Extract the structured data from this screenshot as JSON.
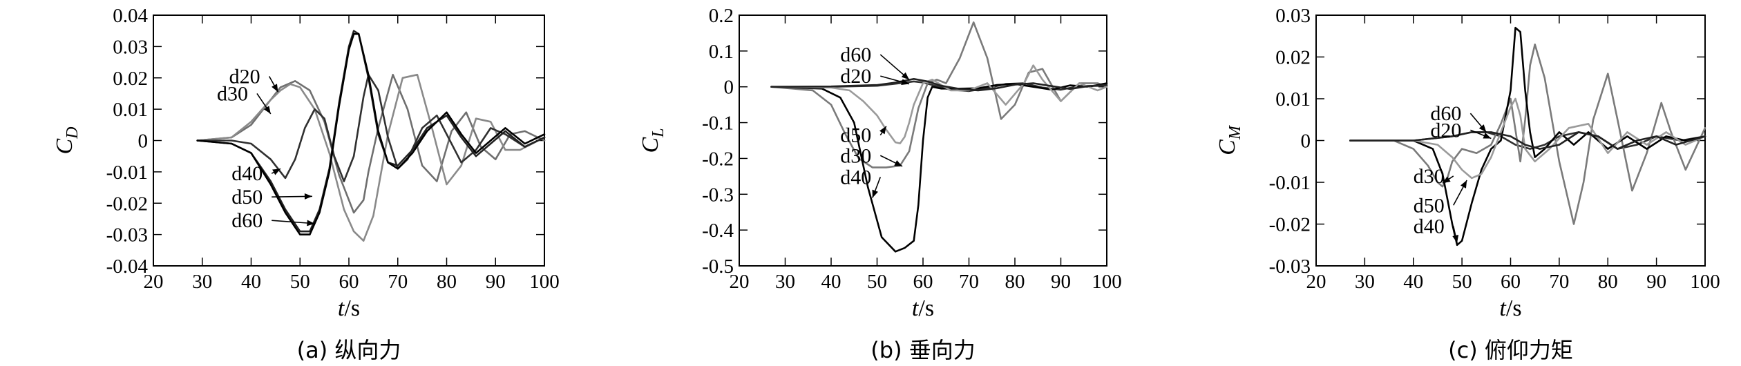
{
  "chart_data": [
    {
      "type": "line",
      "caption": "(a) 纵向力",
      "xlabel": "t/s",
      "ylabel": "C_D",
      "xlim": [
        20,
        100
      ],
      "ylim": [
        -0.04,
        0.04
      ],
      "x_ticks": [
        20,
        30,
        40,
        50,
        60,
        70,
        80,
        90,
        100
      ],
      "y_ticks": [
        -0.04,
        -0.03,
        -0.02,
        -0.01,
        0,
        0.01,
        0.02,
        0.03,
        0.04
      ],
      "x_tick_labels": [
        "20",
        "30",
        "40",
        "50",
        "60",
        "70",
        "80",
        "90",
        "100"
      ],
      "y_tick_labels": [
        "-0.04",
        "-0.03",
        "-0.02",
        "-0.01",
        "0",
        "0.01",
        "0.02",
        "0.03",
        "0.04"
      ],
      "grid": false,
      "series": [
        {
          "name": "d20",
          "color": "#6f6f6f",
          "x": [
            29,
            36,
            40,
            44,
            46,
            49,
            52,
            55,
            58,
            61,
            63,
            64,
            66,
            69,
            72,
            75,
            78,
            81,
            84,
            87,
            90,
            93,
            96,
            100
          ],
          "y": [
            0,
            0.001,
            0.005,
            0.013,
            0.017,
            0.019,
            0.016,
            0.006,
            -0.011,
            -0.023,
            -0.019,
            -0.01,
            0.004,
            0.021,
            0.01,
            -0.008,
            -0.013,
            0.003,
            0.009,
            -0.002,
            -0.006,
            0.002,
            0.003,
            0
          ]
        },
        {
          "name": "d30",
          "color": "#8a8a8a",
          "x": [
            29,
            36,
            40,
            44,
            46,
            48,
            50,
            53,
            56,
            59,
            61,
            63,
            65,
            68,
            71,
            74,
            77,
            80,
            83,
            86,
            89,
            92,
            95,
            100
          ],
          "y": [
            0,
            0.001,
            0.006,
            0.013,
            0.016,
            0.018,
            0.017,
            0.01,
            -0.004,
            -0.022,
            -0.029,
            -0.032,
            -0.024,
            0.002,
            0.02,
            0.021,
            0.004,
            -0.014,
            -0.008,
            0.007,
            0.006,
            -0.003,
            -0.003,
            0.001
          ]
        },
        {
          "name": "d40",
          "color": "#303030",
          "x": [
            29,
            36,
            40,
            44,
            47,
            49,
            51,
            53,
            55,
            57,
            59,
            61,
            63,
            64,
            66,
            68,
            70,
            72,
            75,
            78,
            80,
            83,
            86,
            89,
            92,
            96,
            100
          ],
          "y": [
            0,
            0,
            -0.001,
            -0.006,
            -0.012,
            -0.006,
            0.004,
            0.01,
            0.007,
            -0.005,
            -0.013,
            -0.005,
            0.014,
            0.021,
            0.016,
            0.001,
            -0.009,
            -0.006,
            0.004,
            0.008,
            0.002,
            -0.007,
            -0.003,
            0.004,
            0.002,
            -0.002,
            0.001
          ]
        },
        {
          "name": "d50",
          "color": "#222222",
          "x": [
            29,
            36,
            40,
            44,
            47,
            50,
            52,
            54,
            56,
            58,
            60,
            61,
            62,
            64,
            66,
            68,
            70,
            73,
            76,
            80,
            83,
            86,
            89,
            92,
            96,
            100
          ],
          "y": [
            0,
            -0.001,
            -0.004,
            -0.013,
            -0.022,
            -0.029,
            -0.029,
            -0.022,
            -0.009,
            0.012,
            0.03,
            0.035,
            0.034,
            0.02,
            0.002,
            -0.007,
            -0.008,
            -0.003,
            0.004,
            0.008,
            0.001,
            -0.005,
            -0.001,
            0.003,
            -0.002,
            0.001
          ]
        },
        {
          "name": "d60",
          "color": "#000000",
          "x": [
            29,
            36,
            40,
            44,
            47,
            50,
            52,
            54,
            56,
            58,
            60,
            61,
            62,
            64,
            66,
            68,
            70,
            73,
            76,
            80,
            83,
            86,
            89,
            92,
            96,
            100
          ],
          "y": [
            0,
            -0.001,
            -0.004,
            -0.014,
            -0.023,
            -0.03,
            -0.03,
            -0.023,
            -0.01,
            0.011,
            0.029,
            0.034,
            0.034,
            0.021,
            0.003,
            -0.007,
            -0.009,
            -0.004,
            0.003,
            0.009,
            0.002,
            -0.004,
            0,
            0.004,
            -0.001,
            0.002
          ]
        }
      ],
      "annotations": [
        {
          "text": "d20",
          "x_text": 35.5,
          "y_text": 0.0205,
          "x_point": 45.5,
          "y_point": 0.0155
        },
        {
          "text": "d30",
          "x_text": 33,
          "y_text": 0.015,
          "x_point": 44,
          "y_point": 0.0085
        },
        {
          "text": "d40",
          "x_text": 36,
          "y_text": -0.0105,
          "x_point": 46,
          "y_point": -0.009
        },
        {
          "text": "d50",
          "x_text": 36,
          "y_text": -0.018,
          "x_point": 52.5,
          "y_point": -0.0178
        },
        {
          "text": "d60",
          "x_text": 36,
          "y_text": -0.0255,
          "x_point": 53,
          "y_point": -0.0265
        }
      ]
    },
    {
      "type": "line",
      "caption": "(b) 垂向力",
      "xlabel": "t/s",
      "ylabel": "C_L",
      "xlim": [
        20,
        100
      ],
      "ylim": [
        -0.5,
        0.2
      ],
      "x_ticks": [
        20,
        30,
        40,
        50,
        60,
        70,
        80,
        90,
        100
      ],
      "y_ticks": [
        -0.5,
        -0.4,
        -0.3,
        -0.2,
        -0.1,
        0,
        0.1,
        0.2
      ],
      "x_tick_labels": [
        "20",
        "30",
        "40",
        "50",
        "60",
        "70",
        "80",
        "90",
        "100"
      ],
      "y_tick_labels": [
        "-0.5",
        "-0.4",
        "-0.3",
        "-0.2",
        "-0.1",
        "0",
        "0.1",
        "0.2"
      ],
      "grid": false,
      "series": [
        {
          "name": "d20",
          "color": "#303030",
          "x": [
            27,
            40,
            50,
            55,
            58,
            60,
            63,
            66,
            70,
            74,
            78,
            82,
            86,
            90,
            94,
            100
          ],
          "y": [
            0,
            0,
            0.003,
            0.01,
            0.015,
            0.012,
            0.002,
            -0.008,
            -0.012,
            -0.004,
            0.008,
            0.01,
            -0.002,
            -0.008,
            0.002,
            0.003
          ]
        },
        {
          "name": "d30",
          "color": "#7a7a7a",
          "x": [
            27,
            36,
            40,
            43,
            46,
            49,
            52,
            55,
            57,
            59,
            61,
            63,
            65,
            68,
            71,
            74,
            77,
            80,
            83,
            86,
            90,
            94,
            98,
            100
          ],
          "y": [
            0,
            -0.01,
            -0.05,
            -0.13,
            -0.2,
            -0.225,
            -0.225,
            -0.22,
            -0.18,
            -0.06,
            0.01,
            0.02,
            0.01,
            0.08,
            0.18,
            0.08,
            -0.09,
            -0.05,
            0.04,
            0.05,
            -0.04,
            0.01,
            0.01,
            0
          ]
        },
        {
          "name": "d40",
          "color": "#000000",
          "x": [
            27,
            38,
            42,
            45,
            48,
            51,
            54,
            56,
            58,
            59,
            60,
            61,
            62,
            64,
            68,
            72,
            76,
            80,
            84,
            88,
            92,
            96,
            100
          ],
          "y": [
            0,
            -0.005,
            -0.03,
            -0.1,
            -0.28,
            -0.42,
            -0.46,
            -0.45,
            -0.43,
            -0.33,
            -0.15,
            -0.03,
            0,
            -0.005,
            -0.005,
            -0.004,
            0.005,
            0.008,
            0,
            -0.008,
            0.004,
            0,
            0.01
          ]
        },
        {
          "name": "d50",
          "color": "#9a9a9a",
          "x": [
            27,
            40,
            44,
            47,
            50,
            52,
            54,
            55,
            56,
            57,
            58,
            60,
            62,
            64,
            66,
            70,
            74,
            78,
            82,
            84,
            86,
            90,
            94,
            98,
            100
          ],
          "y": [
            0,
            -0.002,
            -0.01,
            -0.04,
            -0.08,
            -0.12,
            -0.155,
            -0.158,
            -0.14,
            -0.1,
            -0.05,
            0.01,
            0.02,
            0.005,
            -0.01,
            -0.01,
            0.01,
            -0.05,
            0.01,
            0.06,
            0.02,
            -0.04,
            0.01,
            -0.01,
            0
          ]
        },
        {
          "name": "d60",
          "color": "#222222",
          "x": [
            27,
            40,
            50,
            54,
            58,
            61,
            64,
            68,
            72,
            76,
            80,
            84,
            88,
            92,
            96,
            100
          ],
          "y": [
            0,
            0.001,
            0.005,
            0.012,
            0.022,
            0.015,
            0.003,
            -0.006,
            -0.01,
            -0.004,
            0.006,
            0.01,
            0.002,
            -0.006,
            0.002,
            0.005
          ]
        }
      ],
      "annotations": [
        {
          "text": "d60",
          "x_text": 42,
          "y_text": 0.09,
          "x_point": 57,
          "y_point": 0.02
        },
        {
          "text": "d20",
          "x_text": 42,
          "y_text": 0.03,
          "x_point": 57,
          "y_point": 0.008
        },
        {
          "text": "d50",
          "x_text": 42,
          "y_text": -0.135,
          "x_point": 52,
          "y_point": -0.11
        },
        {
          "text": "d30",
          "x_text": 42,
          "y_text": -0.192,
          "x_point": 55.5,
          "y_point": -0.222
        },
        {
          "text": "d40",
          "x_text": 42,
          "y_text": -0.252,
          "x_point": 49,
          "y_point": -0.31
        }
      ]
    },
    {
      "type": "line",
      "caption": "(c) 俯仰力矩",
      "xlabel": "t/s",
      "ylabel": "C_M",
      "xlim": [
        20,
        100
      ],
      "ylim": [
        -0.03,
        0.03
      ],
      "x_ticks": [
        20,
        30,
        40,
        50,
        60,
        70,
        80,
        90,
        100
      ],
      "y_ticks": [
        -0.03,
        -0.02,
        -0.01,
        0,
        0.01,
        0.02,
        0.03
      ],
      "x_tick_labels": [
        "20",
        "30",
        "40",
        "50",
        "60",
        "70",
        "80",
        "90",
        "100"
      ],
      "y_tick_labels": [
        "-0.03",
        "-0.02",
        "-0.01",
        "0",
        "0.01",
        "0.02",
        "0.03"
      ],
      "grid": false,
      "series": [
        {
          "name": "d20",
          "color": "#303030",
          "x": [
            27,
            40,
            48,
            52,
            55,
            58,
            61,
            64,
            67,
            70,
            74,
            78,
            82,
            86,
            90,
            95,
            100
          ],
          "y": [
            0,
            0,
            0.001,
            0.002,
            0.002,
            0.001,
            -0.001,
            -0.002,
            -0.001,
            0.001,
            0.002,
            0.001,
            -0.002,
            -0.001,
            0.001,
            0,
            0.001
          ]
        },
        {
          "name": "d30",
          "color": "#7a7a7a",
          "x": [
            27,
            36,
            40,
            43,
            45,
            46,
            47,
            48,
            50,
            53,
            56,
            58,
            60,
            62,
            63,
            64,
            65,
            67,
            70,
            73,
            75,
            77,
            80,
            82,
            85,
            88,
            91,
            93,
            96,
            100
          ],
          "y": [
            0,
            0,
            -0.002,
            -0.006,
            -0.01,
            -0.011,
            -0.009,
            -0.005,
            -0.002,
            -0.003,
            -0.001,
            0.004,
            0.01,
            -0.005,
            0.005,
            0.018,
            0.023,
            0.015,
            -0.005,
            -0.02,
            -0.01,
            0.005,
            0.016,
            0.005,
            -0.012,
            -0.003,
            0.009,
            0.002,
            -0.007,
            0.003
          ]
        },
        {
          "name": "d40",
          "color": "#000000",
          "x": [
            27,
            40,
            44,
            46,
            48,
            49,
            50,
            52,
            54,
            56,
            58,
            60,
            61,
            62,
            63,
            64,
            65,
            67,
            70,
            73,
            76,
            80,
            84,
            88,
            92,
            96,
            100
          ],
          "y": [
            0,
            0,
            -0.002,
            -0.008,
            -0.02,
            -0.025,
            -0.024,
            -0.015,
            -0.007,
            -0.002,
            0,
            0.012,
            0.027,
            0.026,
            0.012,
            0.002,
            -0.004,
            -0.002,
            0.002,
            -0.001,
            0.002,
            -0.002,
            0.001,
            -0.002,
            0.001,
            0,
            0.001
          ]
        },
        {
          "name": "d50",
          "color": "#9a9a9a",
          "x": [
            27,
            40,
            45,
            48,
            50,
            52,
            54,
            56,
            58,
            60,
            61,
            62,
            63,
            65,
            68,
            72,
            76,
            80,
            84,
            88,
            92,
            96,
            100
          ],
          "y": [
            0,
            0,
            -0.001,
            -0.004,
            -0.007,
            -0.009,
            -0.008,
            -0.004,
            0.002,
            0.008,
            0.01,
            0.006,
            -0.002,
            -0.005,
            -0.002,
            0.003,
            0.004,
            -0.003,
            0.002,
            -0.001,
            0.002,
            -0.001,
            0.001
          ]
        },
        {
          "name": "d60",
          "color": "#222222",
          "x": [
            27,
            40,
            48,
            52,
            56,
            60,
            63,
            66,
            70,
            74,
            78,
            82,
            86,
            90,
            94,
            100
          ],
          "y": [
            0,
            0,
            0.001,
            0.002,
            0.002,
            0.001,
            -0.001,
            -0.002,
            -0.001,
            0.002,
            0.001,
            -0.002,
            0,
            0.001,
            -0.001,
            0.001
          ]
        }
      ],
      "annotations": [
        {
          "text": "d60",
          "x_text": 43.5,
          "y_text": 0.0065,
          "x_point": 55,
          "y_point": 0.002
        },
        {
          "text": "d20",
          "x_text": 43.5,
          "y_text": 0.0025,
          "x_point": 56,
          "y_point": 0.0005
        },
        {
          "text": "d30",
          "x_text": 40,
          "y_text": -0.0085,
          "x_point": 46,
          "y_point": -0.0102
        },
        {
          "text": "d50",
          "x_text": 40,
          "y_text": -0.0155,
          "x_point": 51,
          "y_point": -0.0095
        },
        {
          "text": "d40",
          "x_text": 40,
          "y_text": -0.0205,
          "x_point": 49,
          "y_point": -0.0245
        }
      ]
    }
  ]
}
